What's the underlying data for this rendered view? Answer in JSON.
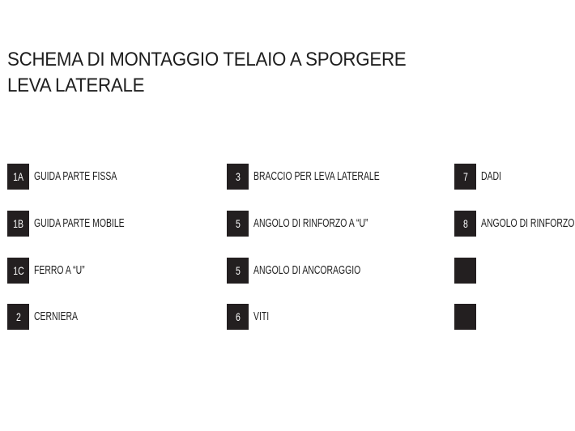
{
  "title": {
    "line1": "SCHEMA DI MONTAGGIO TELAIO A SPORGERE",
    "line2": "LEVA LATERALE"
  },
  "legend": [
    {
      "code": "1A",
      "label": "GUIDA PARTE FISSA"
    },
    {
      "code": "1B",
      "label": "GUIDA PARTE MOBILE"
    },
    {
      "code": "1C",
      "label": "FERRO A “U”"
    },
    {
      "code": "2",
      "label": "CERNIERA"
    },
    {
      "code": "3",
      "label": "BRACCIO PER LEVA LATERALE"
    },
    {
      "code": "5",
      "label": "ANGOLO DI RINFORZO A “U”"
    },
    {
      "code": "5",
      "label": "ANGOLO DI ANCORAGGIO"
    },
    {
      "code": "6",
      "label": "VITI"
    },
    {
      "code": "7",
      "label": "DADI"
    },
    {
      "code": "8",
      "label": "ANGOLO DI RINFORZO"
    },
    {
      "code": "",
      "label": ""
    },
    {
      "code": "",
      "label": ""
    }
  ]
}
